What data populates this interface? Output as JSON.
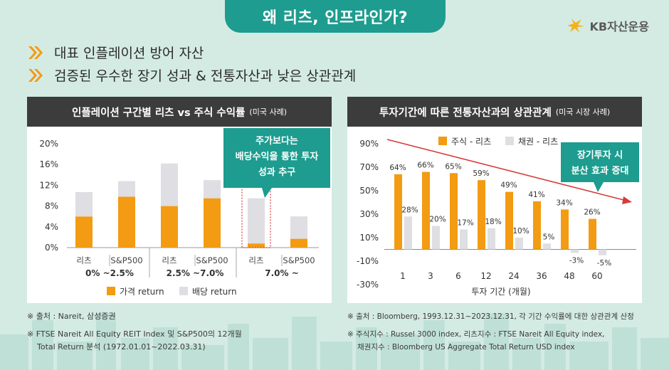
{
  "header": {
    "title": "왜 리츠, 인프라인가?",
    "brand": "KB자산운용"
  },
  "bullets": [
    "대표 인플레이션 방어 자산",
    "검증된 우수한 장기 성과 & 전통자산과 낮은 상관관계"
  ],
  "left_panel": {
    "title": "인플레이션 구간별 리츠 vs 주식 수익률",
    "subtitle": "(미국 사례)",
    "callout": [
      "주가보다는",
      "배당수익을 통한 투자",
      "성과 추구"
    ],
    "note1": "※ 출처 : Nareit, 삼성증권",
    "note2_line1": "※ FTSE Nareit All Equity REIT Index 및 S&P500의 12개월",
    "note2_line2": "Total Return 분석 (1972.01.01~2022.03.31)"
  },
  "right_panel": {
    "title": "투자기간에 따른 전통자산과의 상관관계",
    "subtitle": "(미국 시장 사례)",
    "callout": [
      "장기투자 시",
      "분산 효과 증대"
    ],
    "note1": "※ 출처 : Bloomberg, 1993.12.31~2023.12.31, 각 기간 수익률에 대한 상관관계 산정",
    "note2_line1": "※ 주식지수 : Russel 3000 index, 리츠지수 : FTSE Nareit All Equity index,",
    "note2_line2": "채권지수 : Bloomberg US Aggregate Total Return USD index"
  },
  "colors": {
    "teal": "#1d9c8f",
    "orange": "#f39b12",
    "gray": "#dedee3",
    "dark": "#3c3c3c",
    "arrow": "#d63b3b"
  },
  "chart_data": [
    {
      "type": "bar",
      "stacked": true,
      "categories": [
        "리츠",
        "S&P500",
        "리츠",
        "S&P500",
        "리츠",
        "S&P500"
      ],
      "groups": [
        "0% ~2.5%",
        "2.5% ~7.0%",
        "7.0% ~"
      ],
      "series": [
        {
          "name": "가격 return",
          "values": [
            6.0,
            9.8,
            8.0,
            9.5,
            0.8,
            1.7
          ]
        },
        {
          "name": "배당 return",
          "values": [
            4.7,
            3.0,
            8.2,
            3.5,
            8.7,
            4.3
          ]
        }
      ],
      "ylim": [
        0,
        20
      ],
      "yticks": [
        "0%",
        "4%",
        "8%",
        "12%",
        "16%",
        "20%"
      ],
      "legend": "bottom"
    },
    {
      "type": "bar",
      "x": [
        "1",
        "3",
        "6",
        "12",
        "24",
        "36",
        "48",
        "60"
      ],
      "series": [
        {
          "name": "주식 - 리츠",
          "values": [
            64,
            66,
            65,
            59,
            49,
            41,
            34,
            26
          ],
          "labels": [
            "64%",
            "66%",
            "65%",
            "59%",
            "49%",
            "41%",
            "34%",
            "26%"
          ]
        },
        {
          "name": "채권 - 리츠",
          "values": [
            28,
            20,
            17,
            18,
            10,
            5,
            -3,
            -5
          ],
          "labels": [
            "28%",
            "20%",
            "17%",
            "18%",
            "10%",
            "5%",
            "-3%",
            "-5%"
          ]
        }
      ],
      "xlabel": "투자 기간 (개월)",
      "ylim": [
        -30,
        90
      ],
      "yticks": [
        "90%",
        "70%",
        "50%",
        "30%",
        "10%",
        "-10%",
        "-30%"
      ],
      "legend": "top"
    }
  ]
}
